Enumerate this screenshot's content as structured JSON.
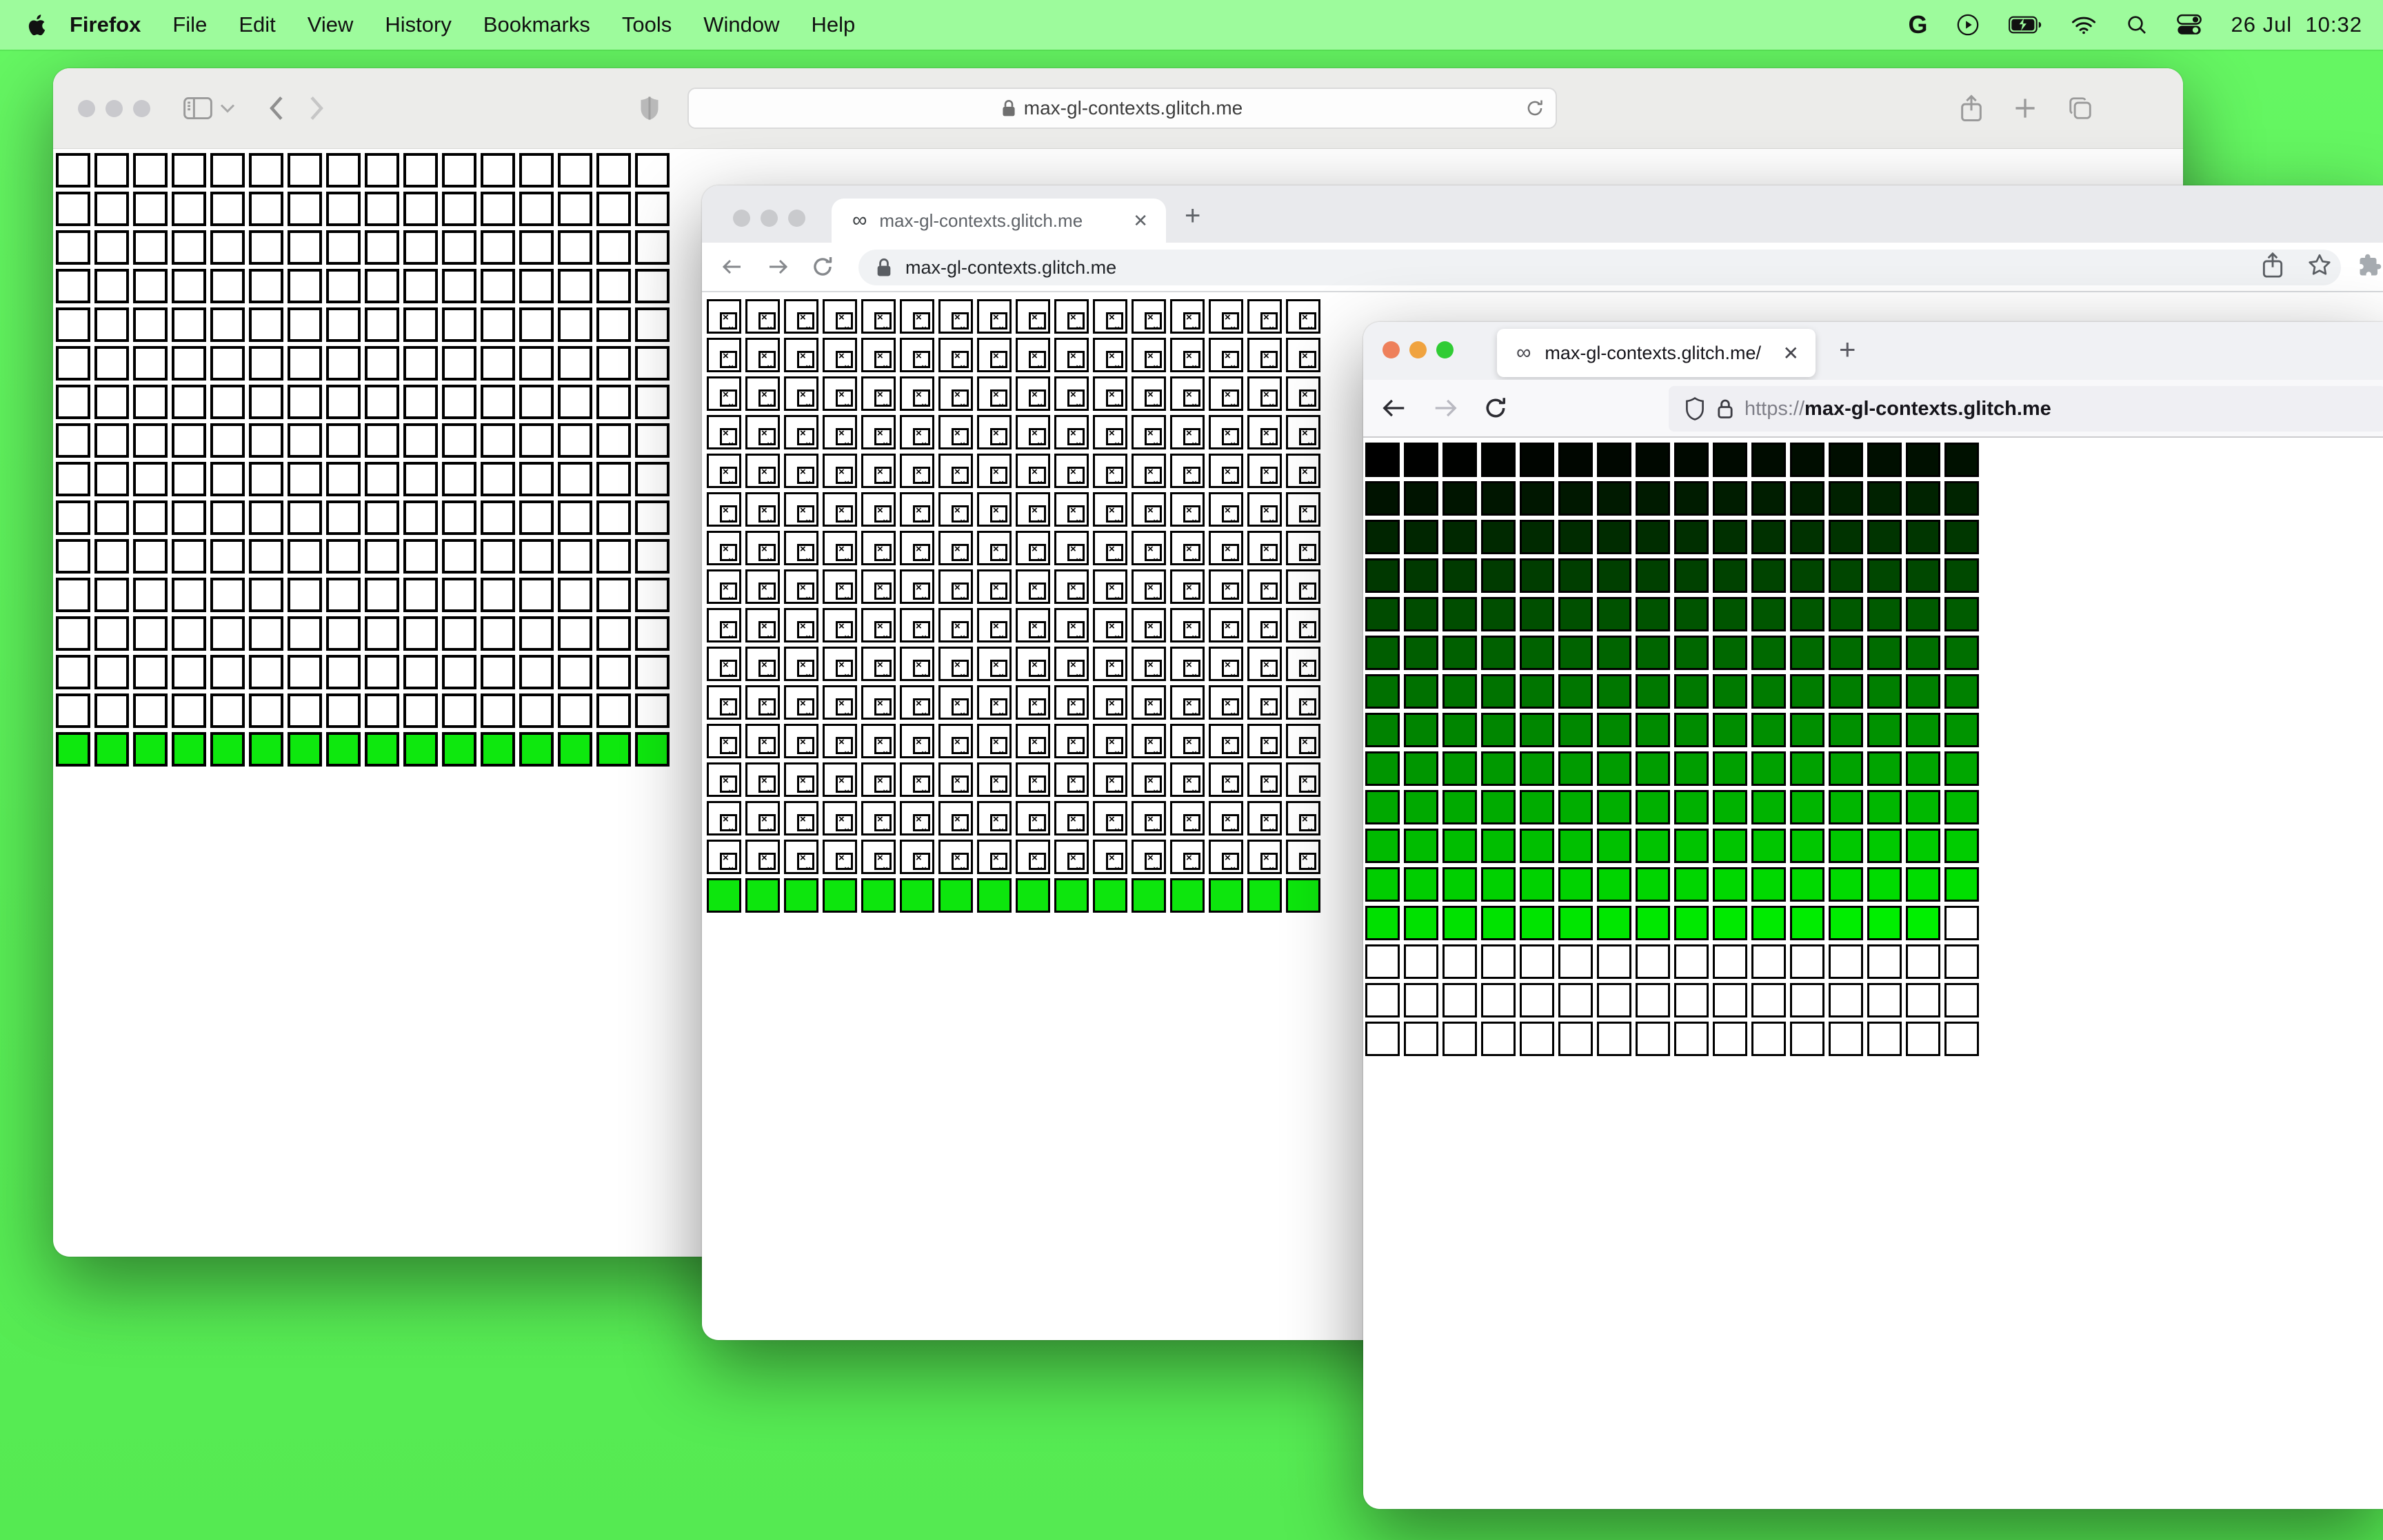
{
  "desktop": {
    "wallpaper_color": "#5aef57",
    "menubar_color": "#9dfb9c"
  },
  "menubar": {
    "items": [
      "Firefox",
      "File",
      "Edit",
      "View",
      "History",
      "Bookmarks",
      "Tools",
      "Window",
      "Help"
    ],
    "active_app": "Firefox",
    "clock": "26 Jul  10:32",
    "status_icons": [
      "google-g",
      "play-circle",
      "battery-charging",
      "wifi",
      "search",
      "control-center"
    ]
  },
  "safari_window": {
    "url": "max-gl-contexts.glitch.me",
    "grid": {
      "type": "heatmap",
      "cols": 16,
      "rows": 16,
      "pitch": 56,
      "cell": 50,
      "mode": "last_row",
      "cell_bg": "#ffffff",
      "last_row_color": "#0ee80e",
      "border_color": "#000000",
      "cell_style": "plain",
      "description_rows_1_15": "empty white webgl canvases",
      "description_row_16": "green webgl canvases"
    }
  },
  "chrome_window": {
    "tab_title": "max-gl-contexts.glitch.me",
    "url": "max-gl-contexts.glitch.me",
    "grid": {
      "type": "heatmap",
      "cols": 16,
      "rows": 16,
      "pitch": 56,
      "cell": 50,
      "mode": "last_row",
      "cell_bg": "#ffffff",
      "last_row_color": "#0de60d",
      "border_color": "#000000",
      "cell_style": "broken-image",
      "description_rows_1_15": "lost webgl contexts shown as broken-image placeholders",
      "description_row_16": "green webgl canvases"
    }
  },
  "firefox_window": {
    "tab_title": "max-gl-contexts.glitch.me/",
    "url_scheme": "https://",
    "url_host": "max-gl-contexts.glitch.me",
    "traffic_lights": [
      "#ee805b",
      "#f0a33f",
      "#30cc34"
    ],
    "grid": {
      "type": "heatmap",
      "cols": 16,
      "rows": 16,
      "pitch": 56,
      "cell": 50,
      "mode": "ramp",
      "colored_count": 207,
      "green_start": 0,
      "green_end": 240,
      "empty_bg": "#ffffff",
      "border_color": "#000000",
      "cell_style": "plain",
      "description": "green channel ramps from black (cell 1) to bright green (cell 207); remaining 49 cells are white"
    }
  },
  "glyphs": {
    "favicon_infinity": "∞",
    "tab_close": "✕",
    "new_tab": "+",
    "broken_x": "×",
    "broken_wave": "⌄"
  }
}
